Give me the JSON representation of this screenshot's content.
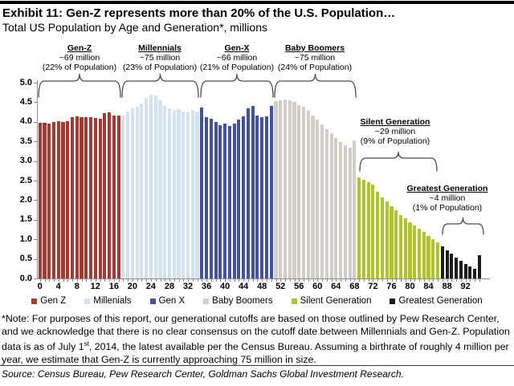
{
  "header": {
    "title": "Exhibit 11: Gen-Z represents more than 20% of the U.S. Population…",
    "subtitle": "Total US Population by Age and Generation*, millions"
  },
  "chart_data": {
    "type": "bar",
    "title": "Exhibit 11: Gen-Z represents more than 20% of the U.S. Population…",
    "subtitle": "Total US Population by Age and Generation*, millions",
    "ylabel": "millions",
    "ylim": [
      0,
      5.0
    ],
    "y_axis": {
      "ticks": [
        "0.0",
        "0.5",
        "1.0",
        "1.5",
        "2.0",
        "2.5",
        "3.0",
        "3.5",
        "4.0",
        "4.5",
        "5.0"
      ]
    },
    "x_axis": {
      "tick_labels": [
        "0",
        "4",
        "8",
        "12",
        "16",
        "20",
        "24",
        "28",
        "32",
        "36",
        "40",
        "44",
        "48",
        "52",
        "56",
        "60",
        "64",
        "68",
        "72",
        "76",
        "80",
        "84",
        "88",
        "92"
      ]
    },
    "grid": false,
    "legend_position": "bottom",
    "series": [
      {
        "name": "Gen Z",
        "color": "#A43B32",
        "age_start": 0,
        "values": [
          3.97,
          3.98,
          3.96,
          4.0,
          4.02,
          4.0,
          4.02,
          4.12,
          4.15,
          4.13,
          4.12,
          4.12,
          4.1,
          4.08,
          4.22,
          4.25,
          4.17,
          4.16
        ]
      },
      {
        "name": "Millenials",
        "color": "#D5E2F0",
        "age_start": 18,
        "values": [
          4.17,
          4.27,
          4.34,
          4.39,
          4.46,
          4.62,
          4.7,
          4.68,
          4.55,
          4.4,
          4.34,
          4.31,
          4.32,
          4.26,
          4.24,
          4.3,
          4.27
        ]
      },
      {
        "name": "Gen X",
        "color": "#42539B",
        "age_start": 35,
        "values": [
          4.36,
          4.12,
          4.07,
          4.0,
          3.92,
          3.95,
          3.9,
          3.95,
          4.05,
          4.15,
          4.34,
          4.4,
          4.17,
          4.13,
          4.15,
          4.41
        ]
      },
      {
        "name": "Baby Boomers",
        "color": "#D1CEC7",
        "age_start": 51,
        "values": [
          4.52,
          4.56,
          4.58,
          4.55,
          4.5,
          4.43,
          4.38,
          4.28,
          4.17,
          4.05,
          3.93,
          3.82,
          3.71,
          3.59,
          3.49,
          3.41,
          3.34,
          3.52
        ]
      },
      {
        "name": "Silent Generation",
        "color": "#B0C42B",
        "age_start": 69,
        "values": [
          2.58,
          2.52,
          2.46,
          2.4,
          2.22,
          2.08,
          1.96,
          1.85,
          1.74,
          1.63,
          1.53,
          1.44,
          1.35,
          1.27,
          1.18,
          1.09,
          1.0,
          0.93
        ]
      },
      {
        "name": "Greatest Generation",
        "color": "#1C1C1C",
        "age_start": 87,
        "values": [
          0.83,
          0.72,
          0.63,
          0.54,
          0.45,
          0.36,
          0.31,
          0.24,
          0.59
        ]
      }
    ],
    "annotations": [
      {
        "name": "Gen-Z",
        "size": "~69 million",
        "share": "(22% of Population)"
      },
      {
        "name": "Millennials",
        "size": "~75 million",
        "share": "(23% of Population)"
      },
      {
        "name": "Gen-X",
        "size": "~66 million",
        "share": "(21% of Population)"
      },
      {
        "name": "Baby Boomers",
        "size": "~75 million",
        "share": "(24% of Population)"
      },
      {
        "name": "Silent Generation",
        "size": "~29 million",
        "share": "(9% of Population)"
      },
      {
        "name": "Greatest Generation",
        "size": "~4 million",
        "share": "(1% of Population)"
      }
    ],
    "legend": [
      "Gen Z",
      "Millenials",
      "Gen X",
      "Baby Boomers",
      "Silent Generation",
      "Greatest Generation"
    ]
  },
  "footer": {
    "note_before_sup": "*Note: For purposes of this report, our generational cutoffs are based on those outlined by Pew Research Center, and we acknowledge that there is no clear consensus on the cutoff date between Millennials and Gen-Z. Population data is as of July 1",
    "note_sup": "st",
    "note_after_sup": ", 2014, the latest available per the Census Bureau. Assuming a birthrate of roughly 4 million per year, we estimate that Gen-Z is currently approaching 75 million in size.",
    "source": "Source: Census Bureau, Pew Research Center, Goldman Sachs Global Investment Research."
  }
}
